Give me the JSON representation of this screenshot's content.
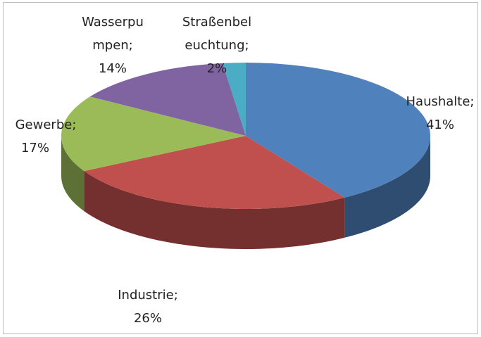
{
  "chart_data": {
    "type": "pie3d",
    "categories": [
      [
        "Haushalte;"
      ],
      [
        "Industrie;"
      ],
      [
        "Gewerbe;"
      ],
      [
        "Wasserpu",
        "mpen;"
      ],
      [
        "Straßenbel",
        "euchtung;"
      ]
    ],
    "values": [
      41,
      26,
      17,
      14,
      2
    ],
    "value_labels": [
      "41%",
      "26%",
      "17%",
      "14%",
      "2%"
    ],
    "colors": [
      "#4f81bd",
      "#c0504d",
      "#9bbb59",
      "#8064a2",
      "#4bacc6"
    ]
  }
}
